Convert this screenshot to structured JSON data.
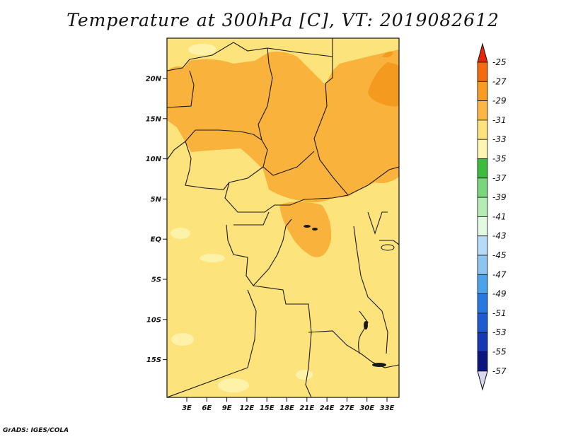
{
  "title": "Temperature at 300hPa [C], VT: 2019082612",
  "credit": "GrADS: IGES/COLA",
  "map": {
    "lat_labels": [
      "20N",
      "15N",
      "10N",
      "5N",
      "EQ",
      "5S",
      "10S",
      "15S"
    ],
    "lon_labels": [
      "3E",
      "6E",
      "9E",
      "12E",
      "15E",
      "18E",
      "21E",
      "24E",
      "27E",
      "30E",
      "33E"
    ],
    "fill_colors": {
      "base": "#fde37b",
      "warm": "#f9b23b",
      "warmer": "#f49a1e",
      "pale": "#fef2a8",
      "border": "#1a1a1a"
    }
  },
  "colorbar": {
    "labels": [
      "-25",
      "-27",
      "-29",
      "-31",
      "-33",
      "-35",
      "-37",
      "-39",
      "-41",
      "-43",
      "-45",
      "-47",
      "-49",
      "-51",
      "-53",
      "-55",
      "-57"
    ],
    "colors": [
      "#e7250b",
      "#f46a0c",
      "#f99c1f",
      "#fbb645",
      "#fde37b",
      "#fef5b0",
      "#3cbc3c",
      "#7ad67a",
      "#b4ecb4",
      "#e2fae2",
      "#b4dcf7",
      "#8cc4f2",
      "#4ba4eb",
      "#2878e2",
      "#1e5ad2",
      "#1538b4",
      "#0b1680"
    ],
    "top_arrow_color": "#e7250b",
    "bottom_arrow_color": "#d8d8f0"
  }
}
